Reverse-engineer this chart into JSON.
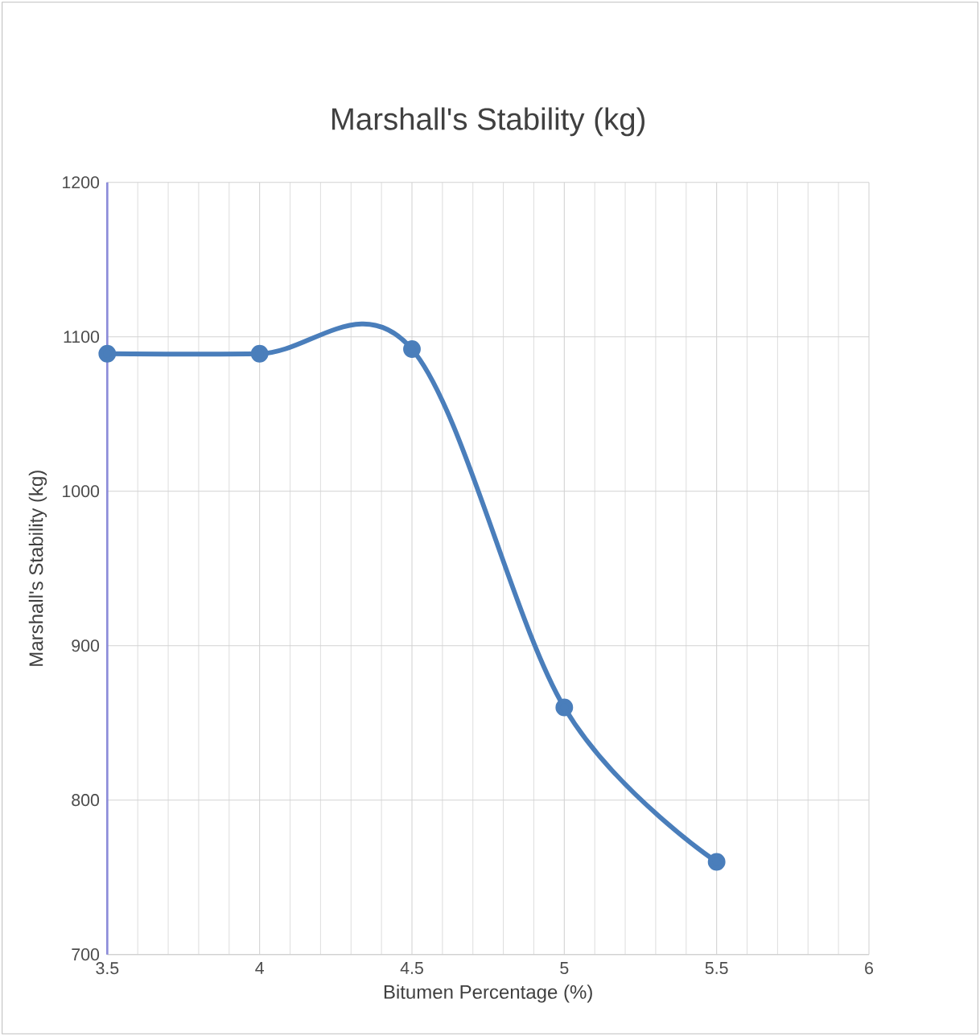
{
  "chart_data": {
    "type": "line",
    "title": "Marshall's Stability (kg)",
    "xlabel": "Bitumen Percentage (%)",
    "ylabel": "Marshall's Stability (kg)",
    "x": [
      3.5,
      4,
      4.5,
      5,
      5.5
    ],
    "series": [
      {
        "color": "#4a7ebb",
        "values": [
          1089,
          1089,
          1092,
          860,
          760
        ]
      }
    ],
    "xlim": [
      3.5,
      6
    ],
    "xticks": [
      3.5,
      4,
      4.5,
      5,
      5.5,
      6
    ],
    "ylim": [
      700,
      1200
    ],
    "yticks": [
      700,
      800,
      900,
      1000,
      1100,
      1200
    ],
    "grid": true,
    "marker": "circle",
    "line_style": "solid"
  }
}
